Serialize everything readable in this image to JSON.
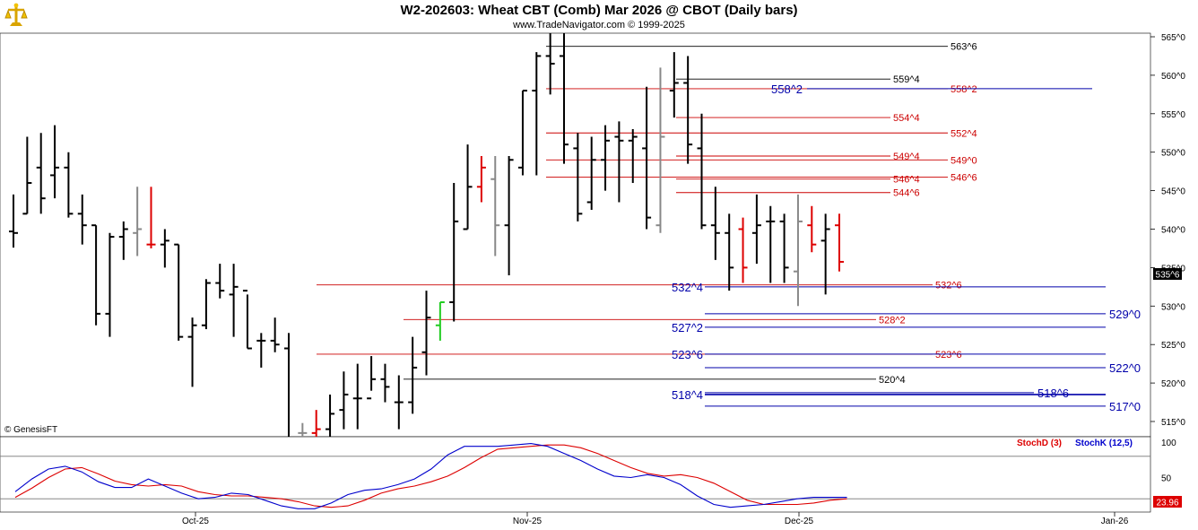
{
  "header": {
    "title": "W2-202603:  Wheat CBT (Comb) Mar 2026 @ CBOT  (Daily bars)",
    "subtitle": "www.TradeNavigator.com © 1999-2025"
  },
  "watermark": "© GenesisFT",
  "last_price_label": "535^6",
  "stoch_value_label": "23.96",
  "colors": {
    "bar": "#000000",
    "down_bar": "#dd0000",
    "neutral_bar": "#888888",
    "up_bar": "#22cc22",
    "resistance": "#cc0000",
    "support": "#0000aa",
    "stochD": "#dd0000",
    "stochK": "#0000cc"
  },
  "chart_data": [
    {
      "type": "ohlc",
      "title": "W2-202603:  Wheat CBT (Comb) Mar 2026 @ CBOT  (Daily bars)",
      "y_ticks": [
        "565^0",
        "560^0",
        "555^0",
        "550^0",
        "545^0",
        "540^0",
        "535^0",
        "530^0",
        "525^0",
        "520^0",
        "515^0"
      ],
      "ylim": [
        514,
        567
      ],
      "x_ticks": [
        "Oct-25",
        "Nov-25",
        "Dec-25",
        "Jan-26"
      ],
      "bars": [
        [
          539.7,
          544.5,
          537.6,
          539.5
        ],
        [
          542.0,
          552.0,
          542.0,
          546.0
        ],
        [
          548.0,
          552.5,
          542.0,
          544.0
        ],
        [
          547.0,
          553.5,
          544.0,
          548.0
        ],
        [
          548.0,
          550.0,
          541.5,
          542.0
        ],
        [
          542.0,
          544.5,
          538.0,
          540.5
        ],
        [
          540.5,
          540.5,
          527.5,
          529.0
        ],
        [
          529.0,
          539.5,
          526.0,
          539.0
        ],
        [
          539.0,
          541.0,
          536.0,
          540.0
        ],
        [
          539.5,
          545.5,
          536.5,
          540.0
        ],
        [
          538.0,
          545.5,
          537.5,
          538.0
        ],
        [
          538.0,
          540.0,
          535.0,
          538.5
        ],
        [
          538.0,
          538.0,
          525.5,
          526.0
        ],
        [
          526.0,
          528.5,
          519.5,
          527.5
        ],
        [
          527.5,
          533.5,
          527.0,
          533.0
        ],
        [
          533.0,
          535.5,
          531.0,
          532.0
        ],
        [
          531.5,
          535.5,
          526.0,
          532.5
        ],
        [
          532.0,
          531.5,
          524.5,
          524.5
        ],
        [
          525.5,
          526.5,
          522.0,
          525.5
        ],
        [
          525.5,
          528.5,
          524.0,
          525.0
        ],
        [
          524.5,
          526.5,
          511.5,
          512.0
        ],
        [
          513.5,
          514.8,
          512.5,
          513.5
        ],
        [
          513.5,
          516.5,
          512.0,
          514.0
        ],
        [
          514.0,
          518.5,
          511.0,
          516.0
        ],
        [
          516.5,
          521.5,
          514.0,
          518.5
        ],
        [
          518.0,
          522.5,
          514.0,
          518.0
        ],
        [
          518.0,
          523.5,
          519.0,
          520.5
        ],
        [
          520.5,
          522.5,
          517.5,
          519.5
        ],
        [
          517.5,
          521.0,
          514.0,
          517.5
        ],
        [
          517.5,
          526.0,
          516.0,
          522.0
        ],
        [
          524.0,
          532.0,
          521.0,
          528.5
        ],
        [
          527.5,
          530.5,
          525.5,
          530.5
        ],
        [
          530.5,
          546.0,
          528.0,
          541.0
        ],
        [
          540.0,
          551.0,
          540.0,
          545.5
        ],
        [
          545.5,
          549.5,
          543.5,
          548.0
        ],
        [
          546.5,
          549.5,
          536.5,
          540.5
        ],
        [
          540.5,
          549.5,
          534.0,
          549.0
        ],
        [
          548.0,
          558.0,
          547.0,
          558.0
        ],
        [
          558.0,
          563.0,
          547.0,
          562.5
        ],
        [
          562.5,
          566.0,
          557.5,
          561.5
        ],
        [
          562.5,
          566.0,
          548.5,
          551.0
        ],
        [
          550.5,
          552.5,
          541.0,
          542.0
        ],
        [
          543.5,
          552.0,
          542.5,
          549.0
        ],
        [
          549.0,
          553.5,
          545.0,
          551.5
        ],
        [
          552.0,
          554.0,
          543.5,
          551.5
        ],
        [
          551.5,
          553.0,
          546.0,
          552.0
        ],
        [
          550.5,
          558.5,
          540.0,
          541.5
        ],
        [
          540.5,
          561.0,
          539.5,
          552.0
        ],
        [
          558.0,
          563.0,
          554.5,
          559.0
        ],
        [
          559.0,
          562.5,
          548.5,
          551.0
        ],
        [
          550.5,
          555.0,
          540.0,
          540.5
        ],
        [
          540.5,
          545.5,
          536.0,
          539.5
        ],
        [
          539.5,
          542.0,
          532.0,
          535.0
        ],
        [
          540.0,
          541.5,
          533.0,
          535.0
        ],
        [
          539.5,
          544.5,
          535.5,
          540.5
        ],
        [
          541.0,
          543.0,
          533.0,
          541.0
        ],
        [
          541.0,
          542.0,
          533.0,
          535.0
        ],
        [
          534.5,
          544.5,
          530.0,
          541.0
        ],
        [
          540.5,
          543.0,
          537.0,
          538.0
        ],
        [
          538.5,
          542.0,
          531.5,
          540.0
        ],
        [
          540.5,
          542.0,
          534.5,
          535.75
        ]
      ],
      "bar_kinds": [
        "n",
        "n",
        "n",
        "n",
        "n",
        "n",
        "n",
        "n",
        "n",
        "g",
        "r",
        "n",
        "n",
        "n",
        "n",
        "n",
        "n",
        "n",
        "n",
        "n",
        "n",
        "g",
        "r",
        "n",
        "n",
        "n",
        "n",
        "n",
        "n",
        "n",
        "n",
        "u",
        "n",
        "n",
        "r",
        "g",
        "n",
        "n",
        "n",
        "n",
        "n",
        "n",
        "n",
        "n",
        "n",
        "n",
        "n",
        "g",
        "n",
        "n",
        "n",
        "n",
        "n",
        "r",
        "n",
        "n",
        "n",
        "g",
        "r",
        "n",
        "r"
      ],
      "levels": [
        {
          "label": "563^6",
          "price": 563.75,
          "color": "#000000",
          "x_from": 0.605,
          "x_to": 0.8
        },
        {
          "label": "559^4",
          "price": 559.5,
          "color": "#000000",
          "x_from": 0.754,
          "x_to": 0.75
        },
        {
          "label": "558^2",
          "price": 558.25,
          "color": "#cc0000",
          "x_from": 0.611,
          "x_to": 0.8
        },
        {
          "label": "554^4",
          "price": 554.5,
          "color": "#cc0000",
          "x_from": 0.754,
          "x_to": 0.75
        },
        {
          "label": "552^4",
          "price": 552.5,
          "color": "#cc0000",
          "x_from": 0.611,
          "x_to": 0.8
        },
        {
          "label": "549^4",
          "price": 549.5,
          "color": "#cc0000",
          "x_from": 0.754,
          "x_to": 0.75
        },
        {
          "label": "549^0",
          "price": 549.0,
          "color": "#cc0000",
          "x_from": 0.611,
          "x_to": 0.8
        },
        {
          "label": "546^4",
          "price": 546.5,
          "color": "#cc0000",
          "x_from": 0.754,
          "x_to": 0.75
        },
        {
          "label": "546^6",
          "price": 546.75,
          "color": "#cc0000",
          "x_from": 0.611,
          "x_to": 0.8
        },
        {
          "label": "544^6",
          "price": 544.75,
          "color": "#cc0000",
          "x_from": 0.754,
          "x_to": 0.75
        },
        {
          "label": "532^6",
          "price": 532.75,
          "color": "#cc0000",
          "x_from": 0.353,
          "x_to": 0.8
        },
        {
          "label": "528^2",
          "price": 528.25,
          "color": "#cc0000",
          "x_from": 0.45,
          "x_to": 0.75
        },
        {
          "label": "523^6",
          "price": 523.75,
          "color": "#cc0000",
          "x_from": 0.353,
          "x_to": 0.8
        },
        {
          "label": "520^4",
          "price": 520.5,
          "color": "#000000",
          "x_from": 0.45,
          "x_to": 0.75
        }
      ],
      "support_levels": [
        {
          "label": "558^2",
          "price": 558.25,
          "color": "#0000aa"
        },
        {
          "label": "532^4",
          "price": 532.5,
          "color": "#0000aa"
        },
        {
          "label": "529^0",
          "price": 529.0,
          "color": "#0000aa"
        },
        {
          "label": "527^2",
          "price": 527.25,
          "color": "#0000aa"
        },
        {
          "label": "523^6",
          "price": 523.75,
          "color": "#0000aa"
        },
        {
          "label": "522^0",
          "price": 522.0,
          "color": "#0000aa"
        },
        {
          "label": "518^4",
          "price": 518.5,
          "color": "#0000aa"
        },
        {
          "label": "518^6",
          "price": 518.75,
          "color": "#0000aa"
        },
        {
          "label": "517^0",
          "price": 517.0,
          "color": "#0000aa"
        }
      ]
    },
    {
      "type": "line",
      "series": [
        {
          "name": "StochD (3)",
          "color": "#dd0000",
          "values": [
            22,
            35,
            50,
            62,
            64,
            55,
            45,
            40,
            38,
            40,
            38,
            30,
            26,
            24,
            24,
            22,
            20,
            16,
            10,
            8,
            10,
            18,
            28,
            34,
            38,
            44,
            52,
            64,
            78,
            90,
            92,
            94,
            96,
            96,
            92,
            84,
            74,
            64,
            56,
            52,
            54,
            50,
            42,
            30,
            18,
            12,
            12,
            12,
            14,
            18,
            20
          ]
        },
        {
          "name": "StochK (12,5)",
          "color": "#0000cc",
          "values": [
            30,
            48,
            62,
            66,
            58,
            44,
            36,
            36,
            48,
            38,
            28,
            20,
            22,
            28,
            26,
            18,
            10,
            6,
            6,
            14,
            26,
            32,
            34,
            40,
            48,
            62,
            82,
            94,
            94,
            94,
            96,
            98,
            94,
            84,
            74,
            62,
            52,
            50,
            54,
            50,
            40,
            24,
            12,
            8,
            10,
            12,
            16,
            20,
            22,
            22,
            22
          ]
        }
      ],
      "y_ticks": [
        "100",
        "50"
      ],
      "ylim": [
        -5,
        105
      ]
    }
  ]
}
